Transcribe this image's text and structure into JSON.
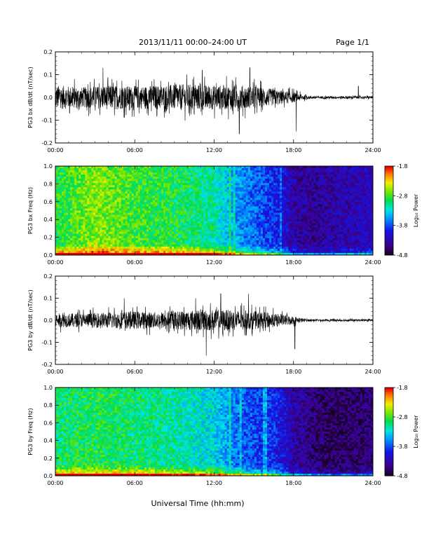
{
  "header": {
    "title": "2013/11/11  00:00–24:00 UT",
    "page": "Page 1/1"
  },
  "xlabel": "Universal Time (hh:mm)",
  "colorbar_label": "Log₁₀ Power",
  "chart_data": [
    {
      "type": "line",
      "ylabel": "PG3 bx dB/dt (nT/sec)",
      "x_ticks": [
        "00:00",
        "06:00",
        "12:00",
        "18:00",
        "24:00"
      ],
      "y_ticks": [
        "0.2",
        "0.1",
        "0.0",
        "-0.1",
        "-0.2"
      ],
      "ylim": [
        -0.2,
        0.2
      ],
      "xlim_hours": [
        0,
        24
      ],
      "envelope": {
        "hours": [
          0,
          2,
          4,
          6,
          8,
          10,
          12,
          14,
          16,
          17,
          18,
          19,
          20,
          22,
          24
        ],
        "amplitude": [
          0.06,
          0.05,
          0.06,
          0.055,
          0.06,
          0.065,
          0.06,
          0.06,
          0.045,
          0.035,
          0.025,
          0.008,
          0.006,
          0.007,
          0.006
        ],
        "peaks": [
          {
            "hour": 3.6,
            "value": 0.13
          },
          {
            "hour": 11.1,
            "value": 0.12
          },
          {
            "hour": 13.9,
            "value": -0.16
          },
          {
            "hour": 14.7,
            "value": 0.13
          },
          {
            "hour": 18.2,
            "value": -0.15
          },
          {
            "hour": 22.9,
            "value": 0.05
          }
        ]
      }
    },
    {
      "type": "heatmap",
      "ylabel": "PG3 bx Freq (Hz)",
      "x_ticks": [
        "00:00",
        "06:00",
        "12:00",
        "18:00",
        "24:00"
      ],
      "y_ticks": [
        "1.0",
        "0.8",
        "0.6",
        "0.4",
        "0.2",
        "0.0"
      ],
      "ylim": [
        0,
        1.0
      ],
      "xlim_hours": [
        0,
        24
      ],
      "colorbar": {
        "ticks": [
          "-1.8",
          "-2.8",
          "-3.8",
          "-4.8"
        ],
        "range": [
          -4.8,
          -1.8
        ]
      },
      "power_profile": {
        "hours": [
          0,
          3,
          6,
          9,
          12,
          13.5,
          15,
          16.5,
          18,
          19.5,
          21,
          24
        ],
        "high_freq_power": [
          -2.9,
          -2.6,
          -2.8,
          -2.9,
          -3.1,
          -3.5,
          -3.7,
          -3.9,
          -4.3,
          -4.4,
          -4.3,
          -4.2
        ],
        "low_freq_boost": [
          0.8,
          0.8,
          0.8,
          0.9,
          0.9,
          0.8,
          0.7,
          0.6,
          0.4,
          0.3,
          0.3,
          0.3
        ]
      }
    },
    {
      "type": "line",
      "ylabel": "PG3 by dB/dt (nT/sec)",
      "x_ticks": [
        "00:00",
        "06:00",
        "12:00",
        "18:00",
        "24:00"
      ],
      "y_ticks": [
        "0.2",
        "0.1",
        "0.0",
        "-0.1",
        "-0.2"
      ],
      "ylim": [
        -0.2,
        0.2
      ],
      "xlim_hours": [
        0,
        24
      ],
      "envelope": {
        "hours": [
          0,
          2,
          4,
          6,
          8,
          10,
          12,
          14,
          16,
          17,
          18,
          19,
          20,
          22,
          24
        ],
        "amplitude": [
          0.035,
          0.035,
          0.04,
          0.045,
          0.04,
          0.05,
          0.055,
          0.05,
          0.04,
          0.03,
          0.02,
          0.006,
          0.005,
          0.006,
          0.005
        ],
        "peaks": [
          {
            "hour": 5.2,
            "value": 0.1
          },
          {
            "hour": 10.6,
            "value": 0.1
          },
          {
            "hour": 11.4,
            "value": -0.16
          },
          {
            "hour": 12.5,
            "value": 0.12
          },
          {
            "hour": 14.6,
            "value": 0.12
          },
          {
            "hour": 18.1,
            "value": -0.13
          }
        ]
      }
    },
    {
      "type": "heatmap",
      "ylabel": "PG3 by Freq (Hz)",
      "x_ticks": [
        "00:00",
        "06:00",
        "12:00",
        "18:00",
        "24:00"
      ],
      "y_ticks": [
        "1.0",
        "0.8",
        "0.6",
        "0.4",
        "0.2",
        "0.0"
      ],
      "ylim": [
        0,
        1.0
      ],
      "xlim_hours": [
        0,
        24
      ],
      "colorbar": {
        "ticks": [
          "-1.8",
          "-2.8",
          "-3.8",
          "-4.8"
        ],
        "range": [
          -4.8,
          -1.8
        ]
      },
      "power_profile": {
        "hours": [
          0,
          3,
          6,
          9,
          12,
          13.5,
          15,
          16.5,
          18,
          19.5,
          21,
          24
        ],
        "high_freq_power": [
          -3.0,
          -2.9,
          -3.0,
          -3.1,
          -3.3,
          -3.6,
          -3.8,
          -3.9,
          -4.3,
          -4.5,
          -4.6,
          -4.5
        ],
        "low_freq_boost": [
          0.8,
          0.8,
          0.8,
          0.8,
          0.8,
          0.7,
          0.6,
          0.5,
          0.4,
          0.3,
          0.3,
          0.3
        ]
      }
    }
  ]
}
